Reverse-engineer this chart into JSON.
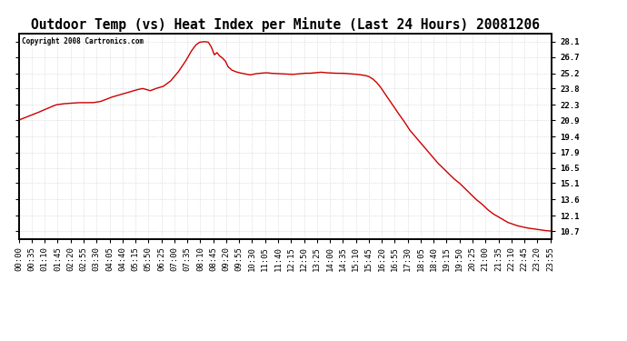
{
  "title": "Outdoor Temp (vs) Heat Index per Minute (Last 24 Hours) 20081206",
  "copyright_text": "Copyright 2008 Cartronics.com",
  "line_color": "#cc0000",
  "background_color": "#ffffff",
  "plot_bg_color": "#ffffff",
  "grid_color": "#c8c8c8",
  "y_ticks": [
    10.7,
    12.1,
    13.6,
    15.1,
    16.5,
    17.9,
    19.4,
    20.9,
    22.3,
    23.8,
    25.2,
    26.7,
    28.1
  ],
  "x_tick_labels": [
    "00:00",
    "00:35",
    "01:10",
    "01:45",
    "02:20",
    "02:55",
    "03:30",
    "04:05",
    "04:40",
    "05:15",
    "05:50",
    "06:25",
    "07:00",
    "07:35",
    "08:10",
    "08:45",
    "09:20",
    "09:55",
    "10:30",
    "11:05",
    "11:40",
    "12:15",
    "12:50",
    "13:25",
    "14:00",
    "14:35",
    "15:10",
    "15:45",
    "16:20",
    "16:55",
    "17:30",
    "18:05",
    "18:40",
    "19:15",
    "19:50",
    "20:25",
    "21:00",
    "21:35",
    "22:10",
    "22:45",
    "23:20",
    "23:55"
  ],
  "ymin": 10.0,
  "ymax": 28.8,
  "title_fontsize": 10.5,
  "tick_fontsize": 6.5,
  "copyright_fontsize": 5.5,
  "line_width": 1.0
}
